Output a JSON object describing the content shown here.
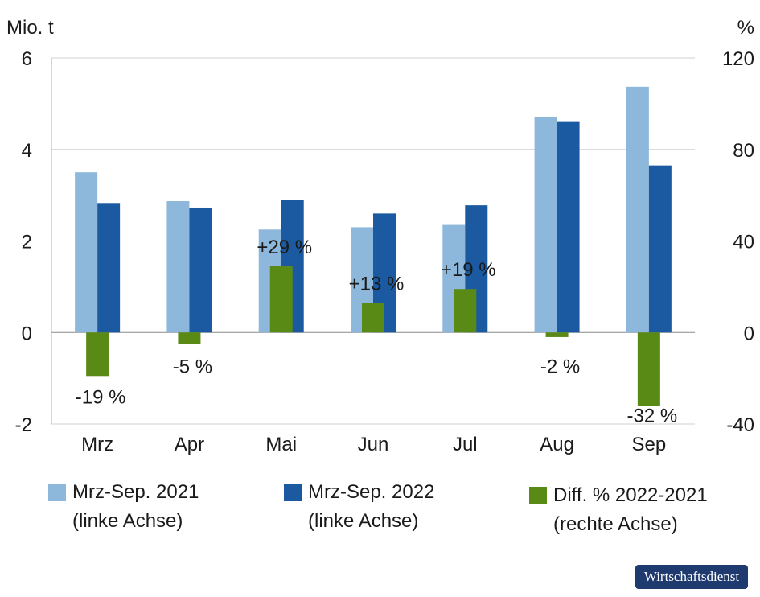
{
  "chart_data": {
    "type": "bar",
    "left_axis_unit": "Mio. t",
    "right_axis_unit": "%",
    "categories": [
      "Mrz",
      "Apr",
      "Mai",
      "Jun",
      "Jul",
      "Aug",
      "Sep"
    ],
    "left_ylim": [
      -2,
      6
    ],
    "left_ticks": [
      -2,
      0,
      2,
      4,
      6
    ],
    "right_ylim": [
      -40,
      120
    ],
    "right_ticks": [
      -40,
      0,
      40,
      80,
      120
    ],
    "grid": true,
    "legend_position": "bottom",
    "series": [
      {
        "name": "Mrz-Sep. 2021",
        "axis": "left",
        "color": "#8db8db",
        "values": [
          3.5,
          2.87,
          2.25,
          2.3,
          2.35,
          4.7,
          5.37
        ]
      },
      {
        "name": "Mrz-Sep. 2022",
        "axis": "left",
        "color": "#1b5aa1",
        "values": [
          2.83,
          2.73,
          2.9,
          2.6,
          2.78,
          4.6,
          3.65
        ]
      },
      {
        "name": "Diff. % 2022-2021",
        "axis": "right",
        "color": "#5a8a16",
        "values": [
          -19,
          -5,
          29,
          13,
          19,
          -2,
          -32
        ],
        "labels": [
          "-19 %",
          "-5 %",
          "+29 %",
          "+13 %",
          "+19 %",
          "-2 %",
          "-32 %"
        ]
      }
    ],
    "legend": [
      {
        "line1": "Mrz-Sep. 2021",
        "line2": "(linke Achse)"
      },
      {
        "line1": "Mrz-Sep. 2022",
        "line2": "(linke Achse)"
      },
      {
        "line1": "Diff. % 2022-2021",
        "line2": "(rechte Achse)"
      }
    ]
  },
  "source_badge": "Wirtschaftsdienst"
}
